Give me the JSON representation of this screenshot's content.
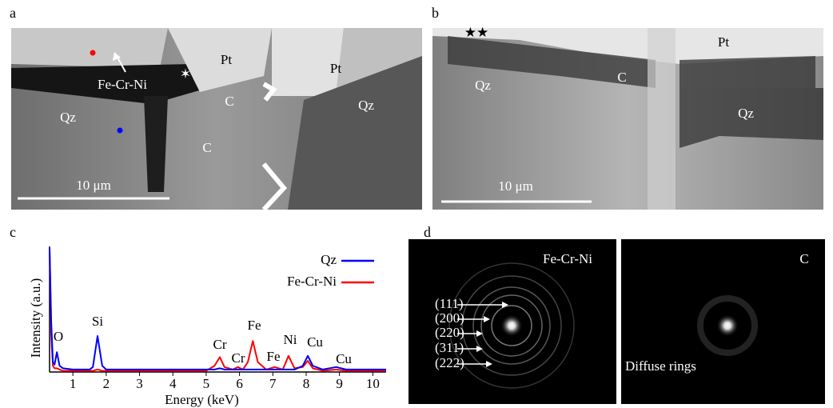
{
  "figure": {
    "a": {
      "label": "a",
      "texts": [
        "Fe-Cr-Ni",
        "Pt",
        "Pt",
        "Qz",
        "Qz",
        "C",
        "C",
        "✶"
      ],
      "scale": "10 μm"
    },
    "b": {
      "label": "b",
      "texts": [
        "★★",
        "Pt",
        "Qz",
        "C",
        "Qz"
      ],
      "scale": "10 μm"
    },
    "c": {
      "label": "c"
    },
    "d": {
      "label": "d",
      "left": {
        "title": "Fe-Cr-Ni",
        "planes": [
          "(111)",
          "(200)",
          "(220)",
          "(311)",
          "(222)"
        ]
      },
      "right": {
        "title": "C",
        "note": "Diffuse rings"
      }
    }
  },
  "chart_data": {
    "type": "line",
    "xlabel": "Energy (keV)",
    "ylabel": "Intensity (a.u.)",
    "x": [
      0.3,
      0.35,
      0.4,
      0.45,
      0.52,
      0.6,
      0.7,
      1.0,
      1.5,
      1.6,
      1.74,
      1.88,
      2.0,
      2.5,
      3,
      4,
      5,
      5.25,
      5.41,
      5.55,
      5.8,
      5.95,
      6.1,
      6.25,
      6.4,
      6.55,
      6.8,
      7.06,
      7.3,
      7.47,
      7.65,
      7.9,
      8.05,
      8.2,
      8.5,
      8.9,
      9.2,
      9.5,
      10,
      10.4
    ],
    "series": [
      {
        "name": "Qz",
        "color": "#0000ff",
        "values": [
          100,
          40,
          8,
          6,
          16,
          5,
          3,
          2,
          2,
          4,
          29,
          5,
          2,
          2,
          2,
          2,
          2,
          2,
          3,
          2,
          2,
          2,
          2,
          2,
          2,
          2,
          2,
          2,
          2,
          2,
          2,
          5,
          13,
          5,
          2,
          4,
          2,
          2,
          2,
          2
        ]
      },
      {
        "name": "Fe-Cr-Ni",
        "color": "#ff0000",
        "values": [
          100,
          30,
          5,
          3,
          3,
          2,
          1,
          1,
          1,
          1,
          2,
          1,
          1,
          1,
          1,
          1,
          1,
          5,
          12,
          4,
          2,
          4,
          2,
          8,
          25,
          8,
          2,
          4,
          2,
          13,
          3,
          4,
          9,
          3,
          1,
          2,
          1,
          1,
          1,
          1
        ]
      }
    ],
    "annotations": [
      "O",
      "Si",
      "Cr",
      "Cr",
      "Fe",
      "Fe",
      "Ni",
      "Cu",
      "Cu"
    ],
    "xlim": [
      0.3,
      10.4
    ],
    "ylim": [
      0,
      100
    ],
    "xticks": [
      1,
      2,
      3,
      4,
      5,
      6,
      7,
      8,
      9,
      10
    ],
    "legend": "upper right"
  }
}
